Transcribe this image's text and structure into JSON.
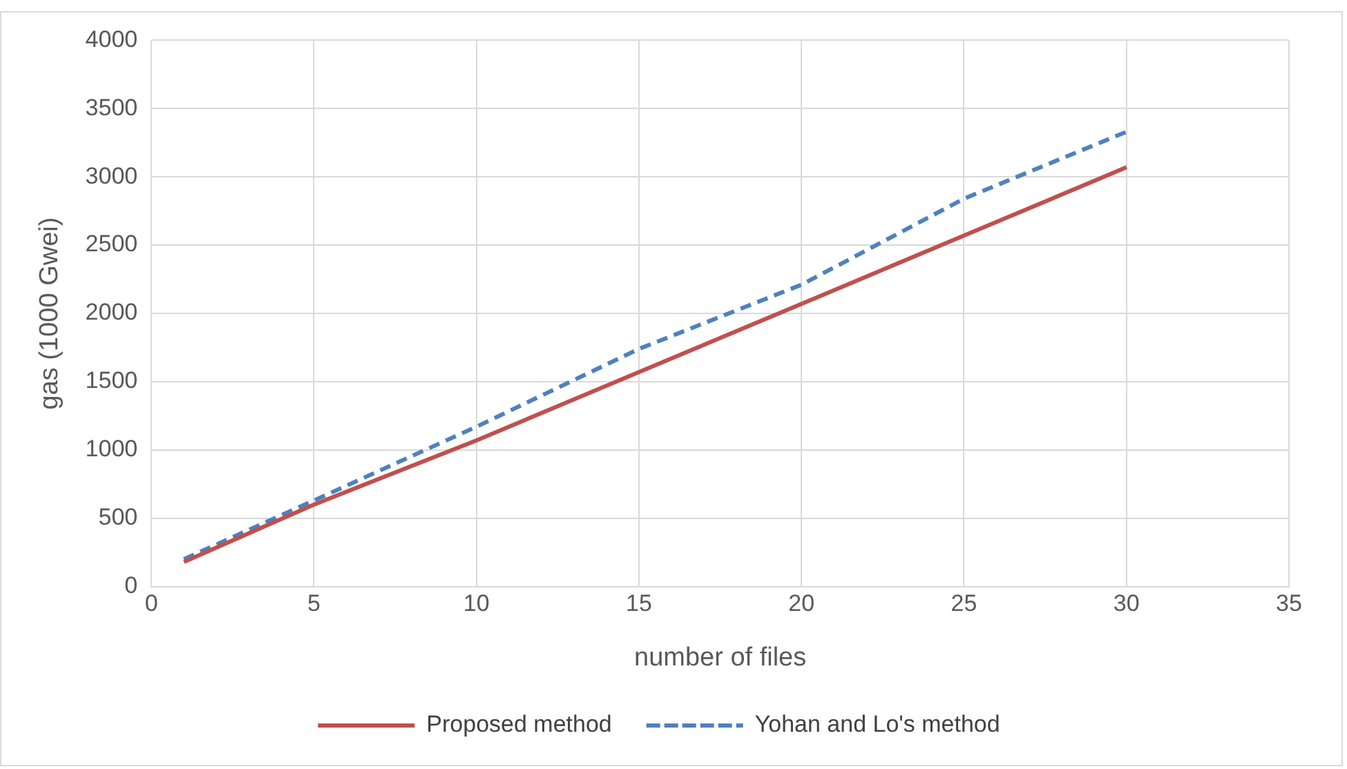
{
  "chart_data": {
    "type": "line",
    "xlabel": "number of files",
    "ylabel": "gas (1000 Gwei)",
    "x": [
      1,
      5,
      10,
      15,
      20,
      25,
      30
    ],
    "series": [
      {
        "name": "Proposed method",
        "color": "#c0504d",
        "line_style": "solid",
        "values": [
          180,
          600,
          1070,
          1570,
          2070,
          2570,
          3070
        ]
      },
      {
        "name": "Yohan and Lo's method",
        "color": "#4f81bd",
        "line_style": "dashed",
        "values": [
          200,
          630,
          1170,
          1740,
          2210,
          2840,
          3330
        ]
      }
    ],
    "xlim": [
      0,
      35
    ],
    "xticks": [
      0,
      5,
      10,
      15,
      20,
      25,
      30,
      35
    ],
    "ylim": [
      0,
      4000
    ],
    "yticks": [
      0,
      500,
      1000,
      1500,
      2000,
      2500,
      3000,
      3500,
      4000
    ],
    "grid": true,
    "legend": "bottom",
    "marker": "none"
  }
}
